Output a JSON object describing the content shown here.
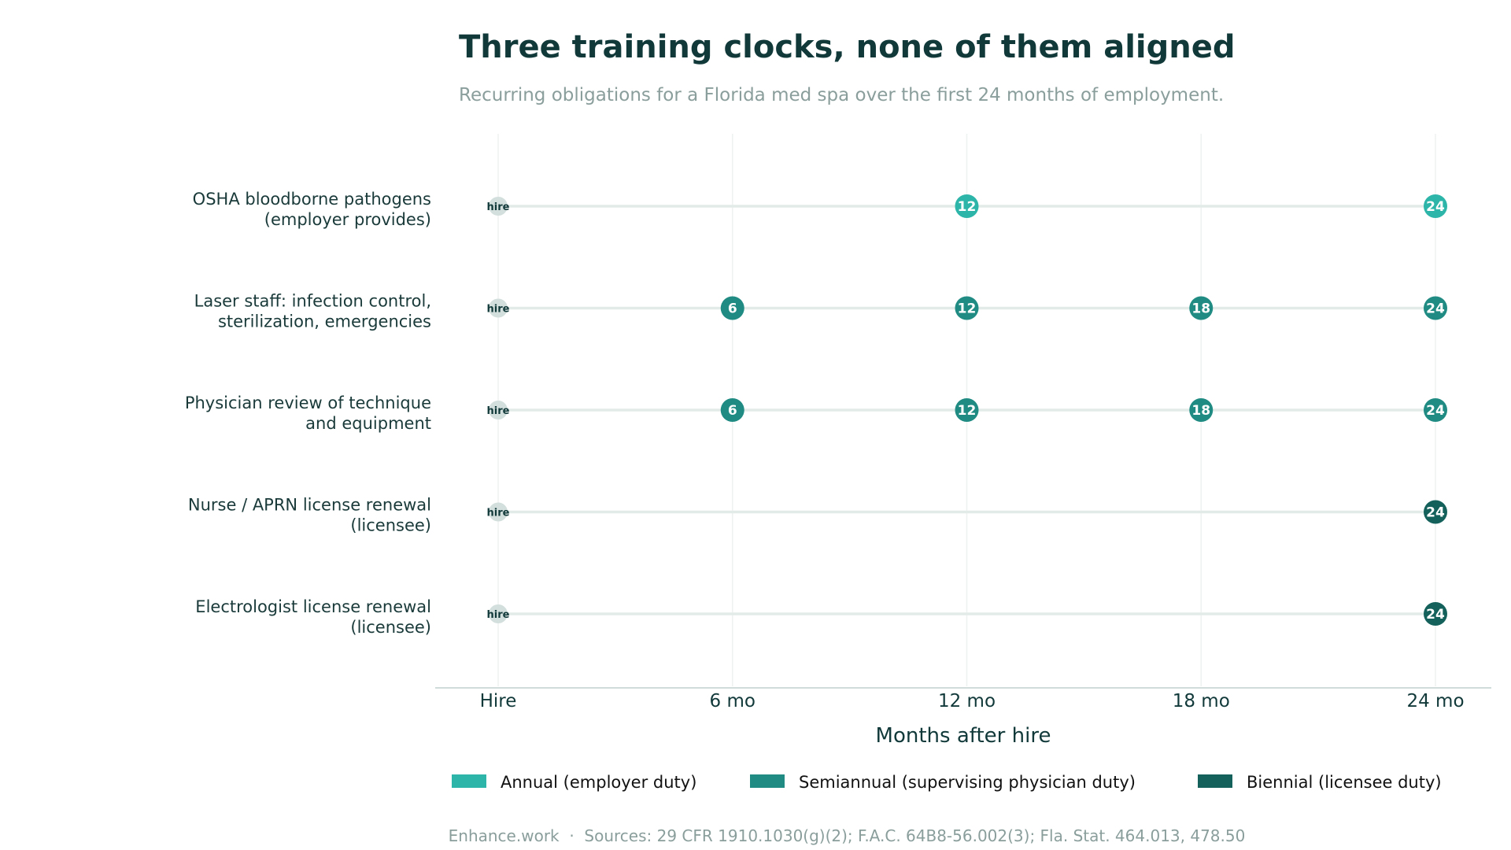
{
  "chart_data": {
    "type": "scatter",
    "title": "Three training clocks, none of them aligned",
    "subtitle": "Recurring obligations for a Florida med spa over the first 24 months of employment.",
    "xlabel": "Months after hire",
    "x_ticks": [
      {
        "value": 0,
        "label": "Hire"
      },
      {
        "value": 6,
        "label": "6 mo"
      },
      {
        "value": 12,
        "label": "12 mo"
      },
      {
        "value": 18,
        "label": "18 mo"
      },
      {
        "value": 24,
        "label": "24 mo"
      }
    ],
    "xlim": [
      0,
      24
    ],
    "grid": true,
    "legend_position": "bottom",
    "hire_marker_label": "hire",
    "hire_color": "#d2dfdc",
    "categories": [
      {
        "label_lines": [
          "Annual",
          "(employer duty)"
        ],
        "color": "#2cb5a8"
      },
      {
        "label_lines": [
          "Semiannual",
          "(supervising physician duty)"
        ],
        "color": "#1f8b82"
      },
      {
        "label_lines": [
          "Biennial",
          "(licensee duty)"
        ],
        "color": "#14615b"
      }
    ],
    "rows": [
      {
        "label_lines": [
          "OSHA bloodborne pathogens",
          "(employer provides)"
        ],
        "category": 0,
        "marks": [
          12,
          24
        ]
      },
      {
        "label_lines": [
          "Laser staff: infection control,",
          "sterilization, emergencies"
        ],
        "category": 1,
        "marks": [
          6,
          12,
          18,
          24
        ]
      },
      {
        "label_lines": [
          "Physician review of technique",
          "and equipment"
        ],
        "category": 1,
        "marks": [
          6,
          12,
          18,
          24
        ]
      },
      {
        "label_lines": [
          "Nurse / APRN license renewal",
          "(licensee)"
        ],
        "category": 2,
        "marks": [
          24
        ]
      },
      {
        "label_lines": [
          "Electrologist license renewal",
          "(licensee)"
        ],
        "category": 2,
        "marks": [
          24
        ]
      }
    ],
    "source": "Enhance.work  ·  Sources: 29 CFR 1910.1030(g)(2); F.A.C. 64B8-56.002(3); Fla. Stat. 464.013, 478.50"
  }
}
